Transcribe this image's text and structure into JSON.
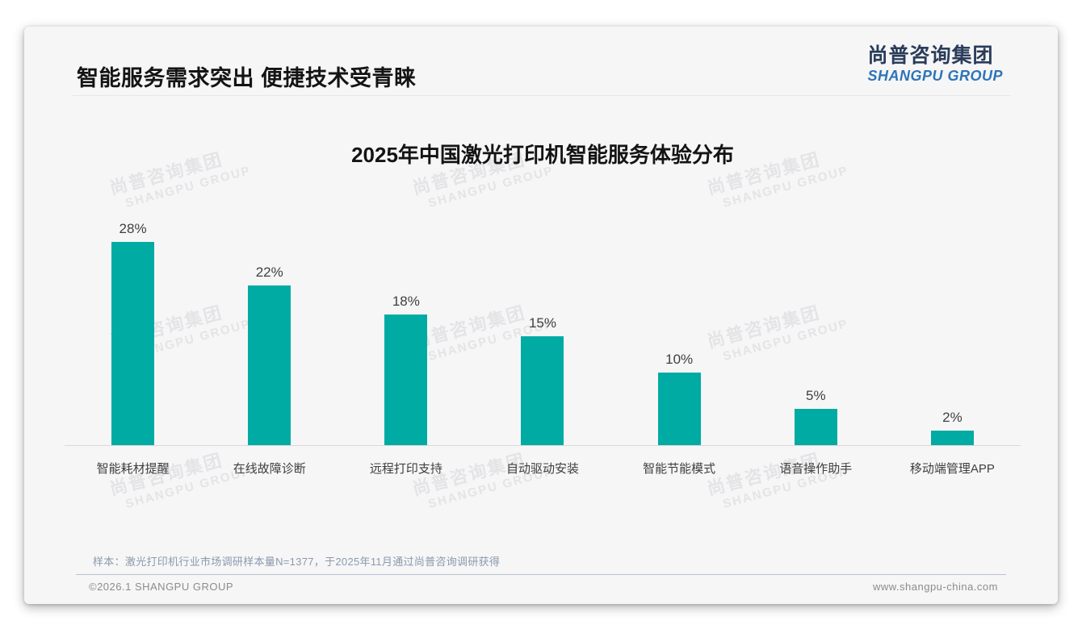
{
  "page": {
    "title": "智能服务需求突出 便捷技术受青睐",
    "logo": {
      "cn": "尚普咨询集团",
      "en": "SHANGPU GROUP"
    },
    "watermark": {
      "cn": "尚普咨询集团",
      "en": "SHANGPU GROUP"
    },
    "note": "样本：激光打印机行业市场调研样本量N=1377，于2025年11月通过尚普咨询调研获得",
    "footer": {
      "copyright": "©2026.1 SHANGPU GROUP",
      "website": "www.shangpu-china.com"
    }
  },
  "chart_data": {
    "type": "bar",
    "title": "2025年中国激光打印机智能服务体验分布",
    "categories": [
      "智能耗材提醒",
      "在线故障诊断",
      "远程打印支持",
      "自动驱动安装",
      "智能节能模式",
      "语音操作助手",
      "移动端管理APP"
    ],
    "values": [
      28,
      22,
      18,
      15,
      10,
      5,
      2
    ],
    "value_labels": [
      "28%",
      "22%",
      "18%",
      "15%",
      "10%",
      "5%",
      "2%"
    ],
    "unit": "%",
    "ylim": [
      0,
      28
    ],
    "grid": false,
    "legend": "none",
    "bar_color": "#00aba4"
  },
  "colors": {
    "accent_teal": "#00aba4",
    "logo_navy": "#2a3c5a",
    "logo_blue": "#2e74b8",
    "axis_line": "#d9d9d9",
    "note_text": "#8b99ad",
    "footer_text": "#8c8c8c"
  }
}
